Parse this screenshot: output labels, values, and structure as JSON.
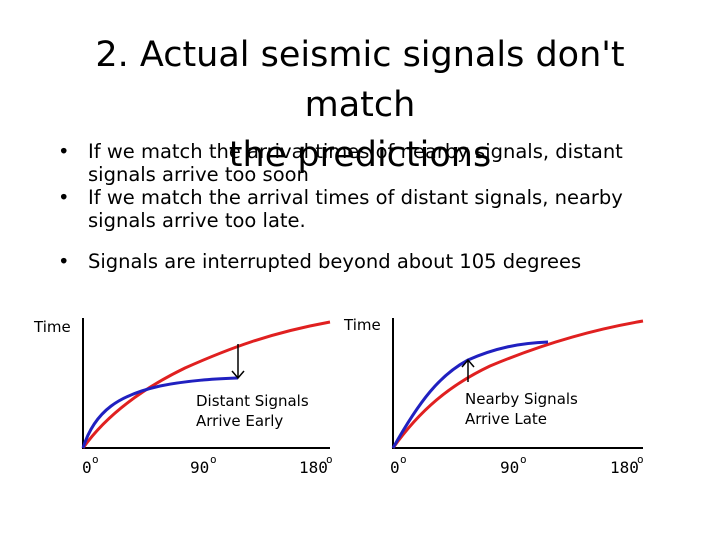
{
  "title": {
    "line1": "2. Actual seismic signals don't match",
    "line2": "the predictions"
  },
  "bullets": [
    "If we match the arrival times of nearby signals, distant signals arrive too soon",
    "If we match the arrival times of distant signals, nearby signals arrive too late.",
    "Signals are interrupted beyond about 105 degrees"
  ],
  "bullet_symbol": "•",
  "colors": {
    "predicted_curve": "#e02020",
    "actual_curve": "#2020c0",
    "axis": "#000000"
  },
  "left_graph": {
    "y_label": "Time",
    "annotation_line1": "Distant Signals",
    "annotation_line2": "Arrive Early",
    "ticks": [
      {
        "value": "0",
        "degree": "o"
      },
      {
        "value": "90",
        "degree": "o"
      },
      {
        "value": "180",
        "degree": "o"
      }
    ]
  },
  "right_graph": {
    "y_label": "Time",
    "annotation_line1": "Nearby Signals",
    "annotation_line2": "Arrive Late",
    "ticks": [
      {
        "value": "0",
        "degree": "o"
      },
      {
        "value": "90",
        "degree": "o"
      },
      {
        "value": "180",
        "degree": "o"
      }
    ]
  }
}
